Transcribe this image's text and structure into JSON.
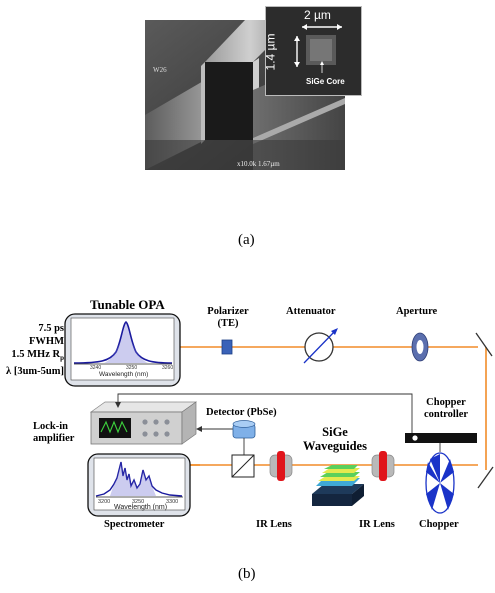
{
  "figure_a": {
    "scale_width": "2 µm",
    "scale_height": "1.4 µm",
    "core_label": "SiGe Core",
    "sem_footer": "x10.0k 1.67µm",
    "sem_tag": "W26",
    "caption": "(a)"
  },
  "figure_b": {
    "laser_title": "Tunable OPA",
    "laser_specs": [
      "7.5 ps FWHM",
      "1.5 MHz R",
      "λ [3um-5um]"
    ],
    "laser_specs_sub": "p",
    "opa_ticks": [
      "3240",
      "3250",
      "3260"
    ],
    "opa_xlabel": "Wavelength (nm)",
    "polarizer_label": "Polarizer",
    "polarizer_sub": "(TE)",
    "attenuator_label": "Attenuator",
    "aperture_label": "Aperture",
    "chopper_controller_label": [
      "Chopper",
      "controller"
    ],
    "lockin_label": [
      "Lock-in",
      "amplifier"
    ],
    "detector_label": "Detector (PbSe)",
    "waveguide_label": [
      "SiGe",
      "Waveguides"
    ],
    "spectrometer_ticks": [
      "3200",
      "3250",
      "3300"
    ],
    "spectrometer_xlabel": "Wavelength (nm)",
    "spectrometer_label": "Spectrometer",
    "ir_lens_left": "IR Lens",
    "ir_lens_right": "IR Lens",
    "chopper_label": "Chopper",
    "caption": "(b)",
    "colors": {
      "beam": "#f28c28",
      "opa_curve": "#1a1a9e",
      "lens_red": "#e0151b",
      "chopper_blue": "#1a33c8",
      "aperture_blue": "#5b6fae",
      "panel_bg": "#dfe3ea"
    }
  }
}
